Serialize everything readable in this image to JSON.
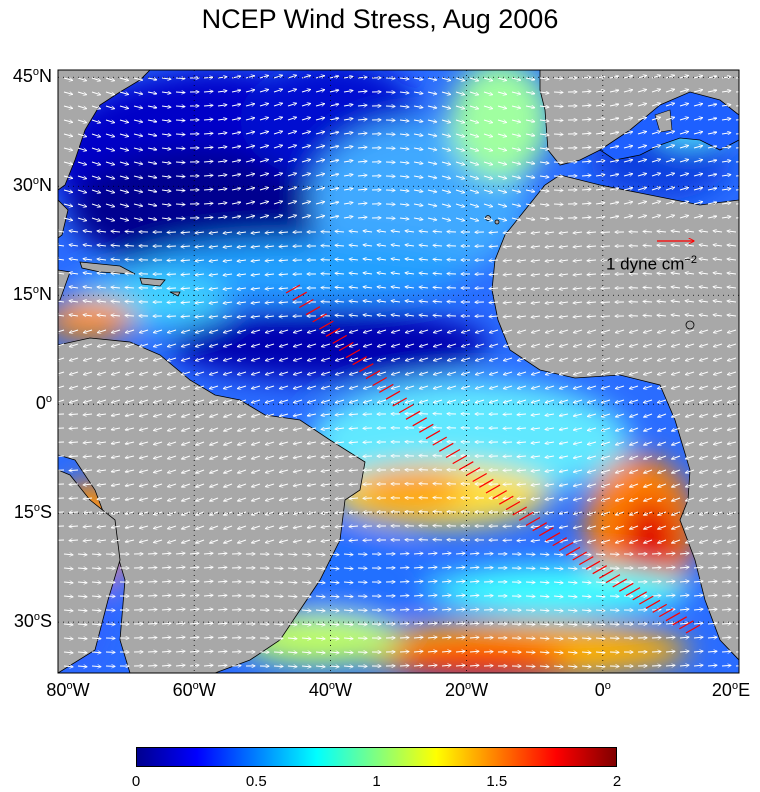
{
  "title": "NCEP Wind Stress, Aug 2006",
  "axes": {
    "y_ticks": [
      {
        "deg": "45",
        "dir": "N",
        "lat": 45
      },
      {
        "deg": "30",
        "dir": "N",
        "lat": 30
      },
      {
        "deg": "15",
        "dir": "N",
        "lat": 15
      },
      {
        "deg": "0",
        "dir": "",
        "lat": 0
      },
      {
        "deg": "15",
        "dir": "S",
        "lat": -15
      },
      {
        "deg": "30",
        "dir": "S",
        "lat": -30
      }
    ],
    "x_ticks": [
      {
        "deg": "80",
        "dir": "W",
        "lon": -80
      },
      {
        "deg": "60",
        "dir": "W",
        "lon": -60
      },
      {
        "deg": "40",
        "dir": "W",
        "lon": -40
      },
      {
        "deg": "20",
        "dir": "W",
        "lon": -20
      },
      {
        "deg": "0",
        "dir": "",
        "lon": 0
      },
      {
        "deg": "20",
        "dir": "E",
        "lon": 20
      }
    ],
    "lon_range": [
      -80,
      20
    ],
    "lat_range": [
      -37,
      46
    ],
    "grid": true
  },
  "scale_arrow": {
    "label_base": "1 dyne cm",
    "label_exp": "−2",
    "color": "#ff0000"
  },
  "colorbar": {
    "ticks": [
      "0",
      "0.5",
      "1",
      "1.5",
      "2"
    ],
    "range": [
      0,
      2
    ],
    "colormap": "jet"
  },
  "colors": {
    "land": "#a8a8a8",
    "ocean_low": "#00008f",
    "vector": "#ffffff",
    "highlight_vector": "#ff0000"
  }
}
